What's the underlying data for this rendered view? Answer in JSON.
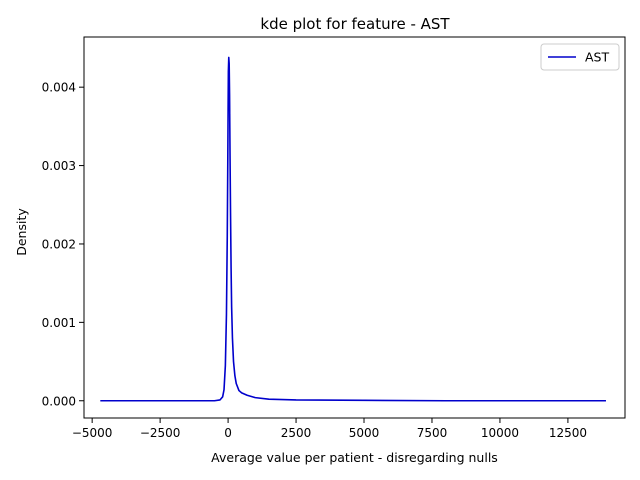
{
  "chart_data": {
    "type": "line",
    "title": "kde plot for feature -  AST",
    "xlabel": "Average value per patient - disregarding nulls",
    "ylabel": "Density",
    "xlim": [
      -5300,
      14600
    ],
    "ylim": [
      -0.00022,
      0.00464
    ],
    "xticks": [
      -5000,
      -2500,
      0,
      2500,
      5000,
      7500,
      10000,
      12500
    ],
    "xtick_labels": [
      "−5000",
      "−2500",
      "0",
      "2500",
      "5000",
      "7500",
      "10000",
      "12500"
    ],
    "yticks": [
      0.0,
      0.001,
      0.002,
      0.003,
      0.004
    ],
    "ytick_labels": [
      "0.000",
      "0.001",
      "0.002",
      "0.003",
      "0.004"
    ],
    "grid": false,
    "legend_position": "top-right",
    "colors": {
      "series": "#0000cc",
      "axes": "#000000",
      "background": "#ffffff"
    },
    "series": [
      {
        "name": "AST",
        "x": [
          -4700,
          -2000,
          -500,
          -300,
          -200,
          -150,
          -100,
          -60,
          -30,
          -10,
          0,
          10,
          25,
          40,
          55,
          70,
          90,
          110,
          130,
          160,
          200,
          250,
          300,
          400,
          500,
          700,
          1000,
          1500,
          2500,
          5000,
          8000,
          11000,
          13900
        ],
        "y": [
          0.0,
          0.0,
          0.0,
          1e-05,
          5e-05,
          0.00014,
          0.00045,
          0.0011,
          0.0021,
          0.0031,
          0.0037,
          0.0042,
          0.00438,
          0.0043,
          0.0039,
          0.0032,
          0.0024,
          0.0017,
          0.0012,
          0.0008,
          0.0005,
          0.00032,
          0.00022,
          0.00013,
          0.0001,
          7e-05,
          4e-05,
          2e-05,
          1e-05,
          5e-06,
          0.0,
          0.0,
          0.0
        ]
      }
    ]
  }
}
